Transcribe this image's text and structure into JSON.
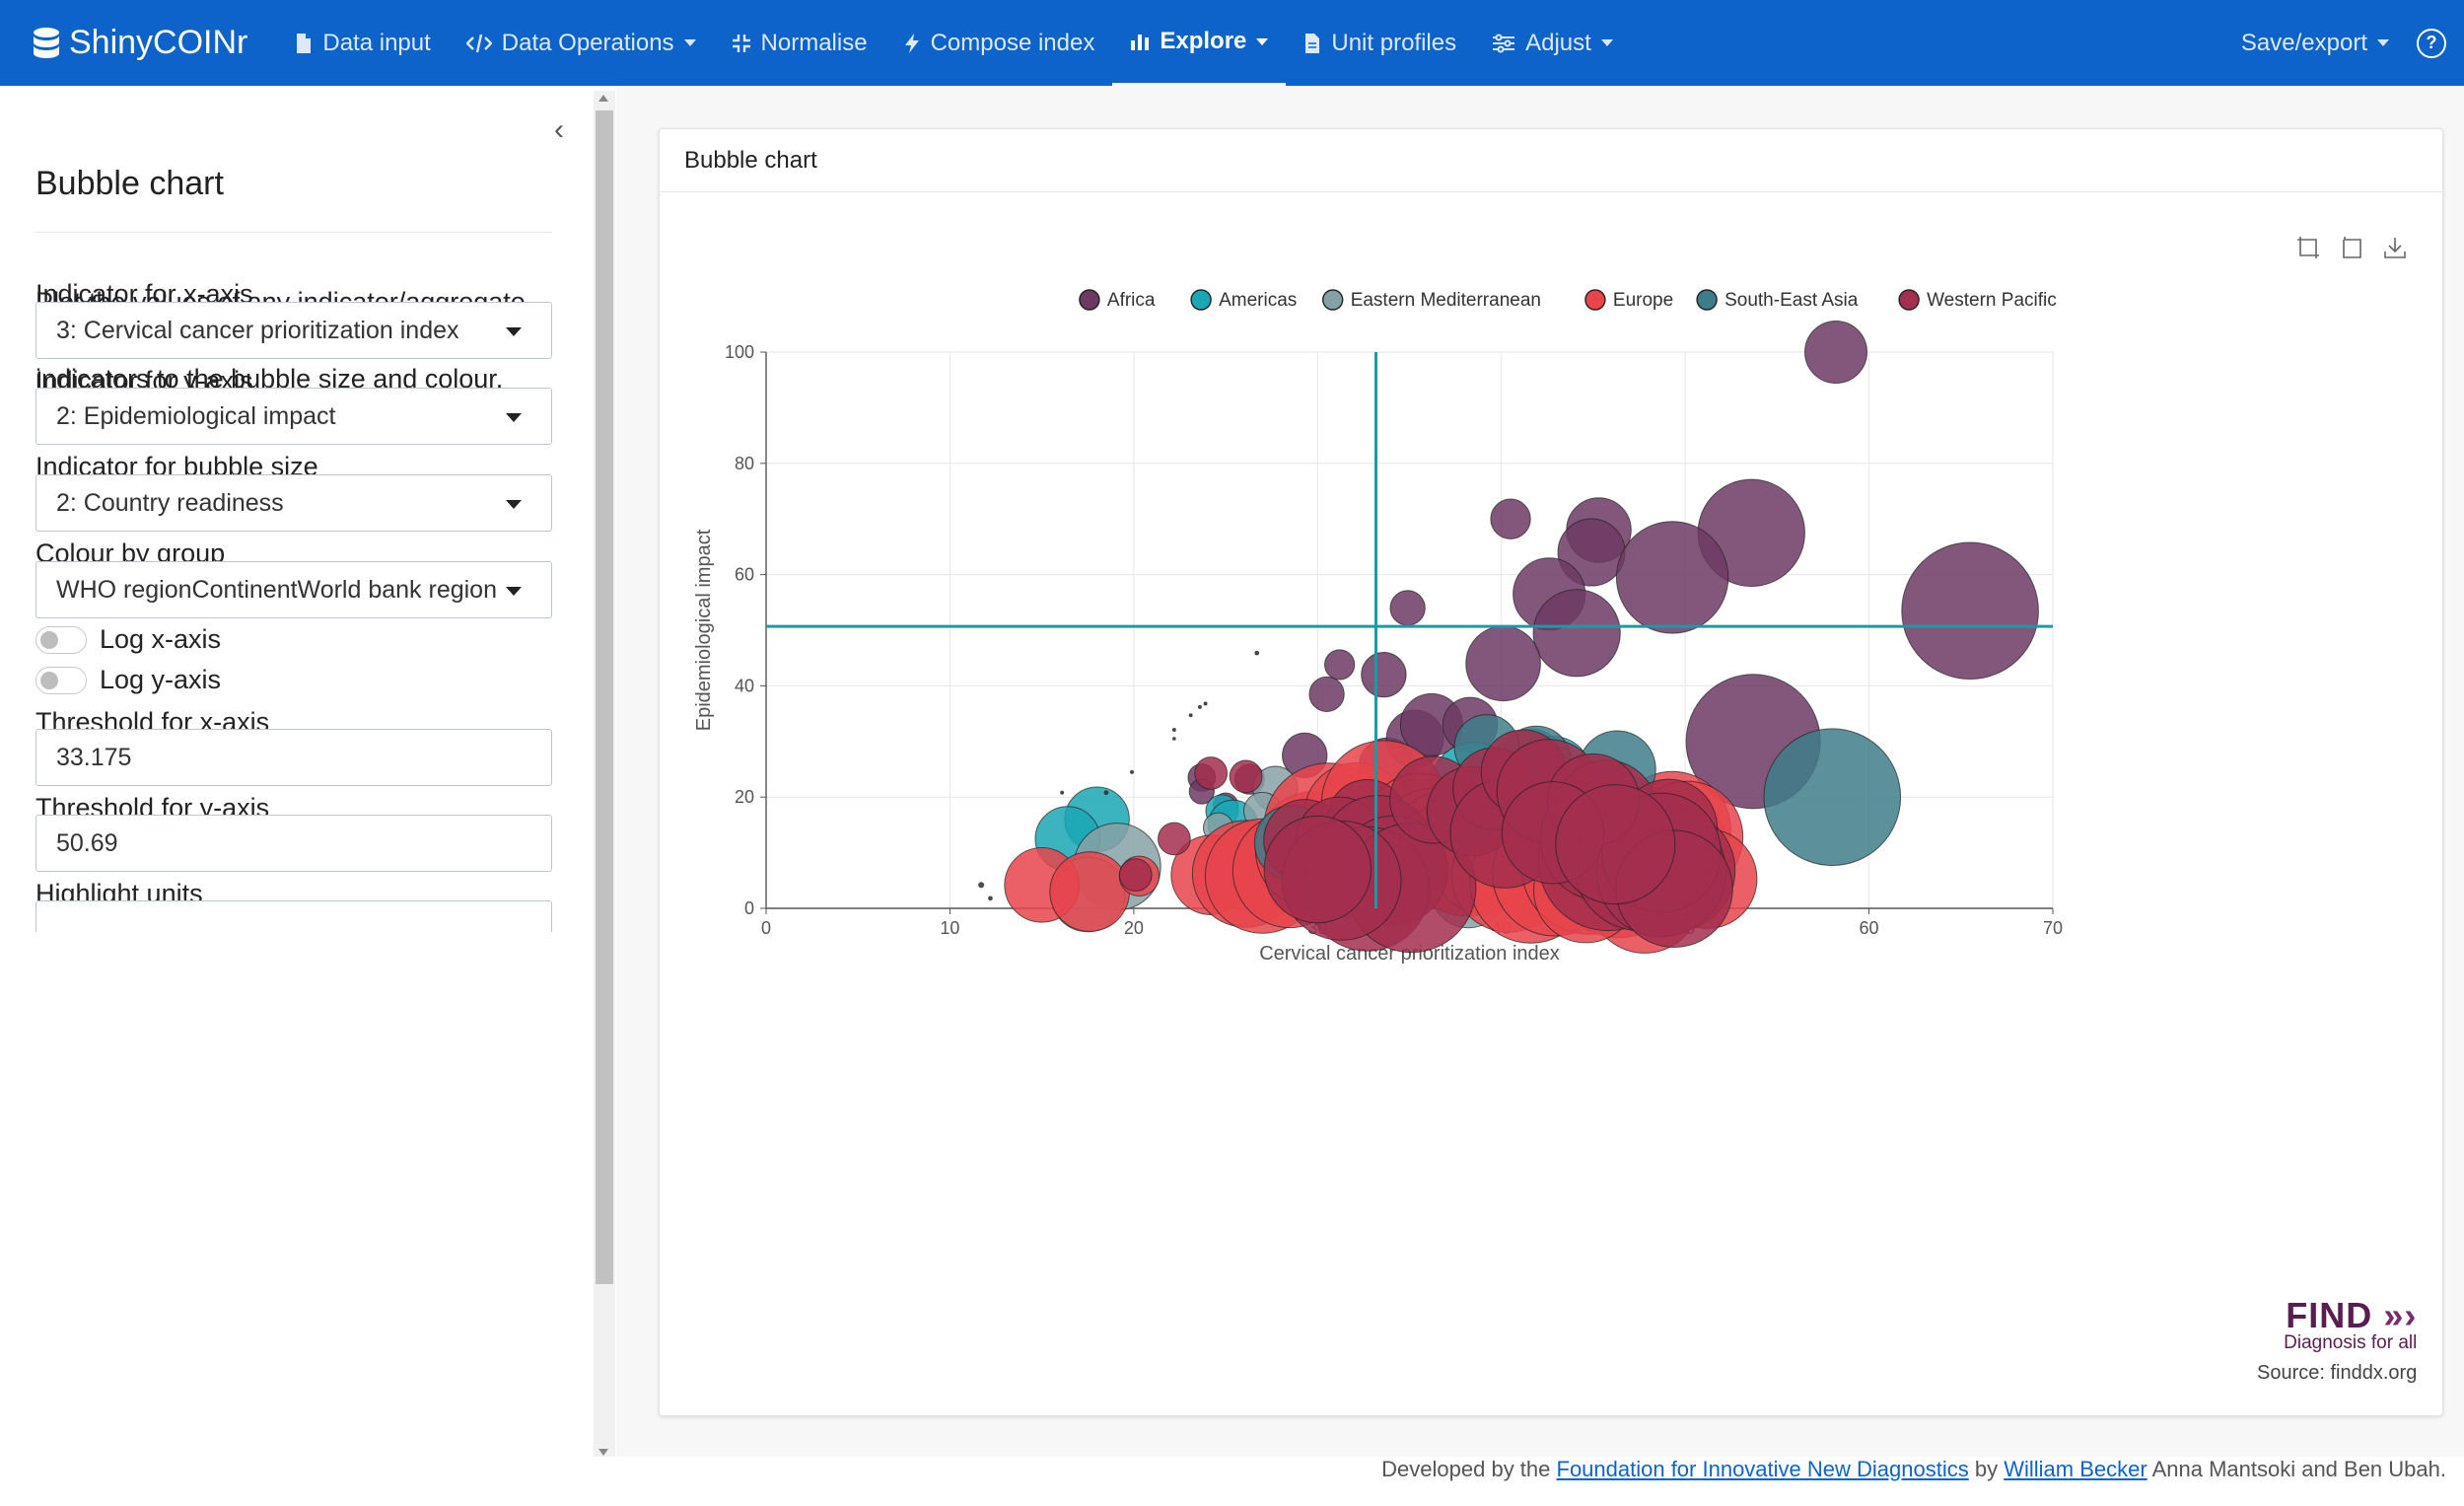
{
  "navbar": {
    "brand": "ShinyCOINr",
    "items": [
      {
        "label": "Data input",
        "icon": "file-import-icon",
        "caret": false,
        "active": false
      },
      {
        "label": "Data Operations",
        "icon": "code-icon",
        "caret": true,
        "active": false
      },
      {
        "label": "Normalise",
        "icon": "compress-icon",
        "caret": false,
        "active": false
      },
      {
        "label": "Compose index",
        "icon": "bolt-icon",
        "caret": false,
        "active": false
      },
      {
        "label": "Explore",
        "icon": "bar-chart-icon",
        "caret": true,
        "active": true
      },
      {
        "label": "Unit profiles",
        "icon": "file-icon",
        "caret": false,
        "active": false
      },
      {
        "label": "Adjust",
        "icon": "sliders-icon",
        "caret": true,
        "active": false
      }
    ],
    "save_export": "Save/export",
    "help_icon": "question-circle-icon"
  },
  "sidebar": {
    "title": "Bubble chart",
    "description": "Plot the values of any indicator/aggregate on the x and y axes, mapping other indicators to the bubble size and colour.",
    "x_label": "Indicator for x-axis",
    "x_value": "3: Cervical cancer prioritization index",
    "y_label": "Indicator for y-axis",
    "y_value": "2: Epidemiological impact",
    "size_label": "Indicator for bubble size",
    "size_value": "2: Country readiness",
    "colour_label": "Colour by group",
    "colour_value": "WHO regionContinentWorld bank region",
    "log_x": "Log x-axis",
    "log_y": "Log y-axis",
    "thresh_x_label": "Threshold for x-axis",
    "thresh_x_value": "33.175",
    "thresh_y_label": "Threshold for y-axis",
    "thresh_y_value": "50.69",
    "highlight_label": "Highlight units"
  },
  "card": {
    "title": "Bubble chart"
  },
  "logo": {
    "name": "FIND",
    "tagline": "Diagnosis for all",
    "source": "Source: finddx.org"
  },
  "footer": {
    "prefix": "Developed by the ",
    "org": "Foundation for Innovative New Diagnostics",
    "by": " by ",
    "author1": "William Becker",
    "rest": " Anna Mantsoki and Ben Ubah."
  },
  "colors": {
    "navbar": "#0d63c9",
    "threshold_line": "#1a9aa5"
  },
  "chart_data": {
    "type": "scatter",
    "xlabel": "Cervical cancer prioritization index",
    "ylabel": "Epidemiological impact",
    "xlim": [
      0,
      70
    ],
    "ylim": [
      0,
      100
    ],
    "xticks": [
      0,
      10,
      20,
      30,
      40,
      50,
      60,
      70
    ],
    "yticks": [
      0,
      20,
      40,
      60,
      80,
      100
    ],
    "thresholds": {
      "x": 33.175,
      "y": 50.69
    },
    "legend_position": "top",
    "series": [
      {
        "name": "Africa",
        "color": "#6d3a64",
        "points": [
          [
            58.2,
            100,
            2.5
          ],
          [
            40.5,
            70,
            1.6
          ],
          [
            45.3,
            68,
            2.6
          ],
          [
            44.9,
            64,
            2.7
          ],
          [
            53.6,
            67.5,
            4.3
          ],
          [
            49.3,
            59.5,
            4.5
          ],
          [
            42.6,
            56.5,
            2.9
          ],
          [
            34.9,
            54,
            1.4
          ],
          [
            44.1,
            49.5,
            3.5
          ],
          [
            65.5,
            53.5,
            5.5
          ],
          [
            40.1,
            44,
            3.0
          ],
          [
            31.2,
            43.8,
            1.2
          ],
          [
            33.6,
            42,
            1.8
          ],
          [
            30.5,
            38.5,
            1.4
          ],
          [
            53.7,
            30,
            5.4
          ],
          [
            29.3,
            27.5,
            1.8
          ],
          [
            33.8,
            25.5,
            2.3
          ],
          [
            35.3,
            30.5,
            2.3
          ],
          [
            36.2,
            33,
            2.5
          ],
          [
            38.3,
            33,
            2.2
          ],
          [
            23.7,
            23.5,
            1.1
          ],
          [
            23.7,
            21,
            1.0
          ],
          [
            22.2,
            30.5,
            0.1
          ],
          [
            25.0,
            18.5,
            1.0
          ],
          [
            26.3,
            23.2,
            1.2
          ]
        ]
      },
      {
        "name": "Americas",
        "color": "#1aa7b5",
        "points": [
          [
            18.0,
            16,
            2.6
          ],
          [
            16.4,
            12.5,
            2.6
          ],
          [
            24.8,
            17.5,
            1.3
          ],
          [
            25.4,
            15,
            2.0
          ],
          [
            38.5,
            22,
            3.5
          ],
          [
            41.6,
            26,
            2.8
          ],
          [
            42.8,
            24,
            3.1
          ],
          [
            42.2,
            21,
            3.3
          ],
          [
            43.5,
            18.5,
            3.2
          ],
          [
            45.1,
            13.5,
            3.0
          ]
        ]
      },
      {
        "name": "Eastern Mediterranean",
        "color": "#86a1a6",
        "points": [
          [
            19.1,
            7.5,
            3.5
          ],
          [
            17.5,
            2.5,
            3.0
          ],
          [
            27.7,
            21.5,
            1.8
          ],
          [
            41.8,
            5.5,
            3.3
          ],
          [
            43.6,
            4.2,
            3.0
          ],
          [
            48.4,
            3.0,
            3.7
          ],
          [
            47.7,
            4.2,
            3.2
          ],
          [
            38.2,
            3.2,
            3.0
          ],
          [
            27.0,
            17.5,
            1.5
          ],
          [
            24.6,
            14.5,
            1.2
          ]
        ]
      },
      {
        "name": "Europe",
        "color": "#e8444c",
        "points": [
          [
            15.0,
            4.2,
            3.0
          ],
          [
            17.6,
            3.0,
            3.2
          ],
          [
            20.3,
            5.8,
            1.6
          ],
          [
            24.2,
            6.0,
            3.2
          ],
          [
            26.1,
            6.2,
            4.3
          ],
          [
            27.0,
            5.8,
            4.6
          ],
          [
            28.5,
            6.8,
            4.6
          ],
          [
            29.8,
            10.5,
            4.7
          ],
          [
            31.6,
            10.0,
            5.2
          ],
          [
            30.6,
            14.5,
            5.2
          ],
          [
            32.1,
            16.8,
            4.2
          ],
          [
            33.6,
            19.0,
            5.0
          ],
          [
            35.6,
            14.0,
            4.6
          ],
          [
            36.2,
            12.2,
            4.2
          ],
          [
            37.1,
            10.5,
            4.8
          ],
          [
            38.1,
            9.8,
            5.0
          ],
          [
            39.1,
            8.9,
            4.4
          ],
          [
            40.4,
            6.0,
            4.6
          ],
          [
            41.6,
            4.7,
            4.9
          ],
          [
            42.9,
            6.2,
            5.0
          ],
          [
            44.8,
            7.6,
            5.5
          ],
          [
            46.4,
            6.8,
            5.4
          ],
          [
            47.4,
            9.2,
            5.6
          ],
          [
            48.5,
            10.0,
            5.7
          ],
          [
            49.3,
            14.1,
            4.7
          ],
          [
            50.1,
            12.8,
            4.5
          ],
          [
            51.2,
            5.3,
            4.0
          ],
          [
            47.8,
            2.0,
            4.5
          ],
          [
            44.6,
            3.2,
            4.2
          ]
        ]
      },
      {
        "name": "South-East Asia",
        "color": "#3f7c89",
        "points": [
          [
            58.0,
            20,
            5.5
          ],
          [
            41.9,
            26.5,
            2.8
          ],
          [
            39.2,
            29,
            2.6
          ],
          [
            44.8,
            20.5,
            3.1
          ],
          [
            46.3,
            25,
            3.1
          ],
          [
            28.6,
            11.8,
            3.0
          ],
          [
            37.8,
            17,
            2.8
          ],
          [
            43.3,
            15.8,
            3.0
          ]
        ]
      },
      {
        "name": "Western Pacific",
        "color": "#a32e4d",
        "points": [
          [
            24.2,
            24.3,
            1.3
          ],
          [
            26.1,
            23.7,
            1.3
          ],
          [
            22.2,
            12.5,
            1.3
          ],
          [
            20.1,
            6.0,
            1.3
          ],
          [
            29.3,
            12.2,
            3.3
          ],
          [
            32.7,
            16.0,
            3.2
          ],
          [
            31.2,
            12.2,
            3.5
          ],
          [
            33.3,
            10.0,
            4.6
          ],
          [
            34.1,
            6.8,
            4.4
          ],
          [
            32.7,
            3.5,
            5.0
          ],
          [
            35.1,
            3.7,
            5.2
          ],
          [
            31.3,
            5.0,
            4.8
          ],
          [
            30.0,
            7.0,
            4.3
          ],
          [
            36.3,
            19.5,
            3.5
          ],
          [
            38.4,
            17.5,
            3.6
          ],
          [
            39.6,
            21.5,
            3.3
          ],
          [
            40.2,
            13.5,
            4.4
          ],
          [
            41.2,
            24.5,
            3.4
          ],
          [
            42.6,
            21.0,
            4.2
          ],
          [
            45.8,
            8.5,
            5.6
          ],
          [
            45.5,
            12.5,
            5.0
          ],
          [
            48.0,
            9.2,
            5.0
          ],
          [
            49.4,
            6.8,
            4.9
          ],
          [
            45.7,
            17.5,
            4.1
          ],
          [
            47.6,
            8.0,
            5.4
          ],
          [
            48.7,
            6.5,
            5.2
          ],
          [
            49.1,
            14.5,
            3.9
          ],
          [
            48.7,
            10.0,
            4.8
          ],
          [
            49.4,
            3.5,
            4.7
          ],
          [
            45.0,
            19.5,
            3.7
          ],
          [
            42.8,
            13.6,
            4.1
          ],
          [
            46.2,
            11.5,
            4.8
          ]
        ]
      },
      {
        "name": "",
        "color": "#3b2b3a",
        "points": [
          [
            11.7,
            4.2,
            0.2
          ],
          [
            12.2,
            1.8,
            0.15
          ],
          [
            16.1,
            20.8,
            0.12
          ],
          [
            18.5,
            20.8,
            0.15
          ],
          [
            19.9,
            24.5,
            0.12
          ],
          [
            22.2,
            32.1,
            0.12
          ],
          [
            23.1,
            34.7,
            0.12
          ],
          [
            23.6,
            36.2,
            0.12
          ],
          [
            23.9,
            36.8,
            0.12
          ],
          [
            26.7,
            45.9,
            0.15
          ]
        ]
      }
    ]
  }
}
